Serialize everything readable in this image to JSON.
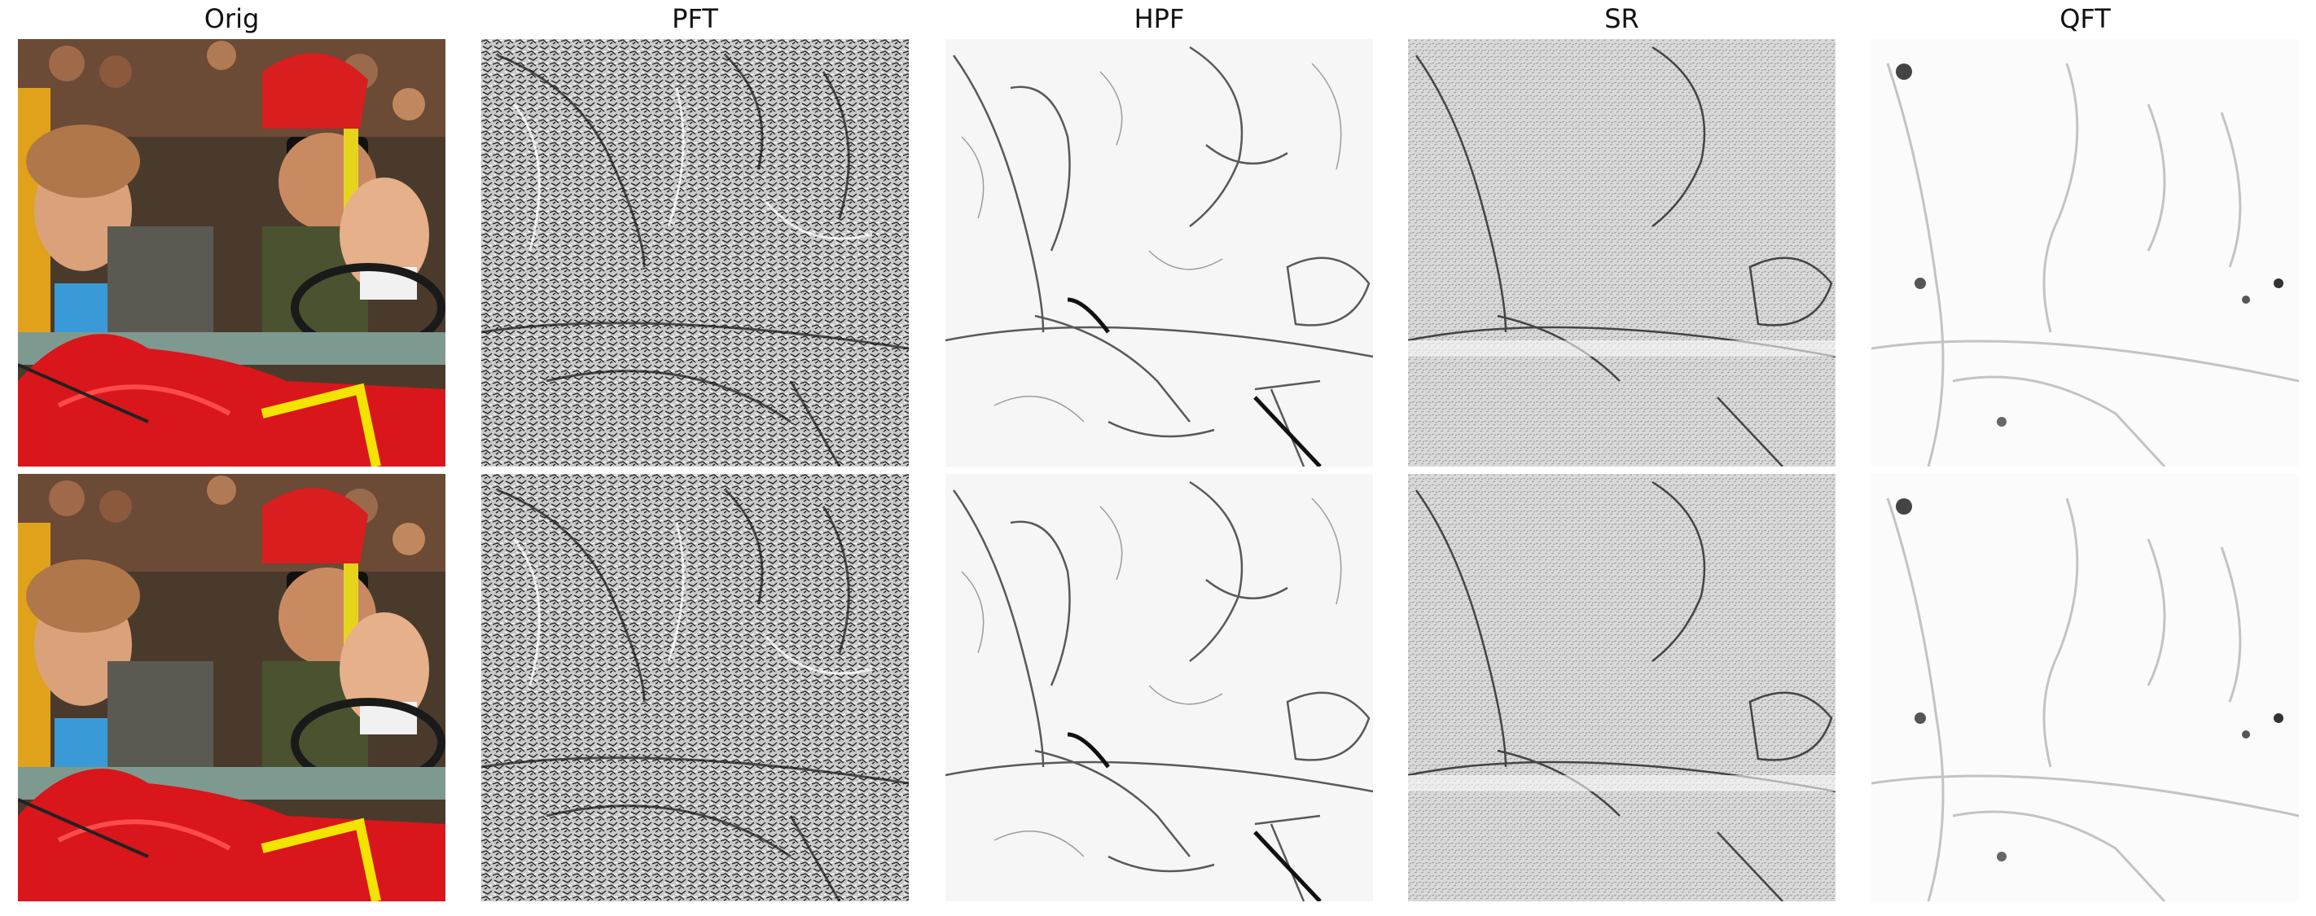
{
  "figure": {
    "columns": [
      {
        "title": "Orig"
      },
      {
        "title": "PFT"
      },
      {
        "title": "HPF"
      },
      {
        "title": "SR"
      },
      {
        "title": "QFT"
      }
    ],
    "rows": 2
  }
}
